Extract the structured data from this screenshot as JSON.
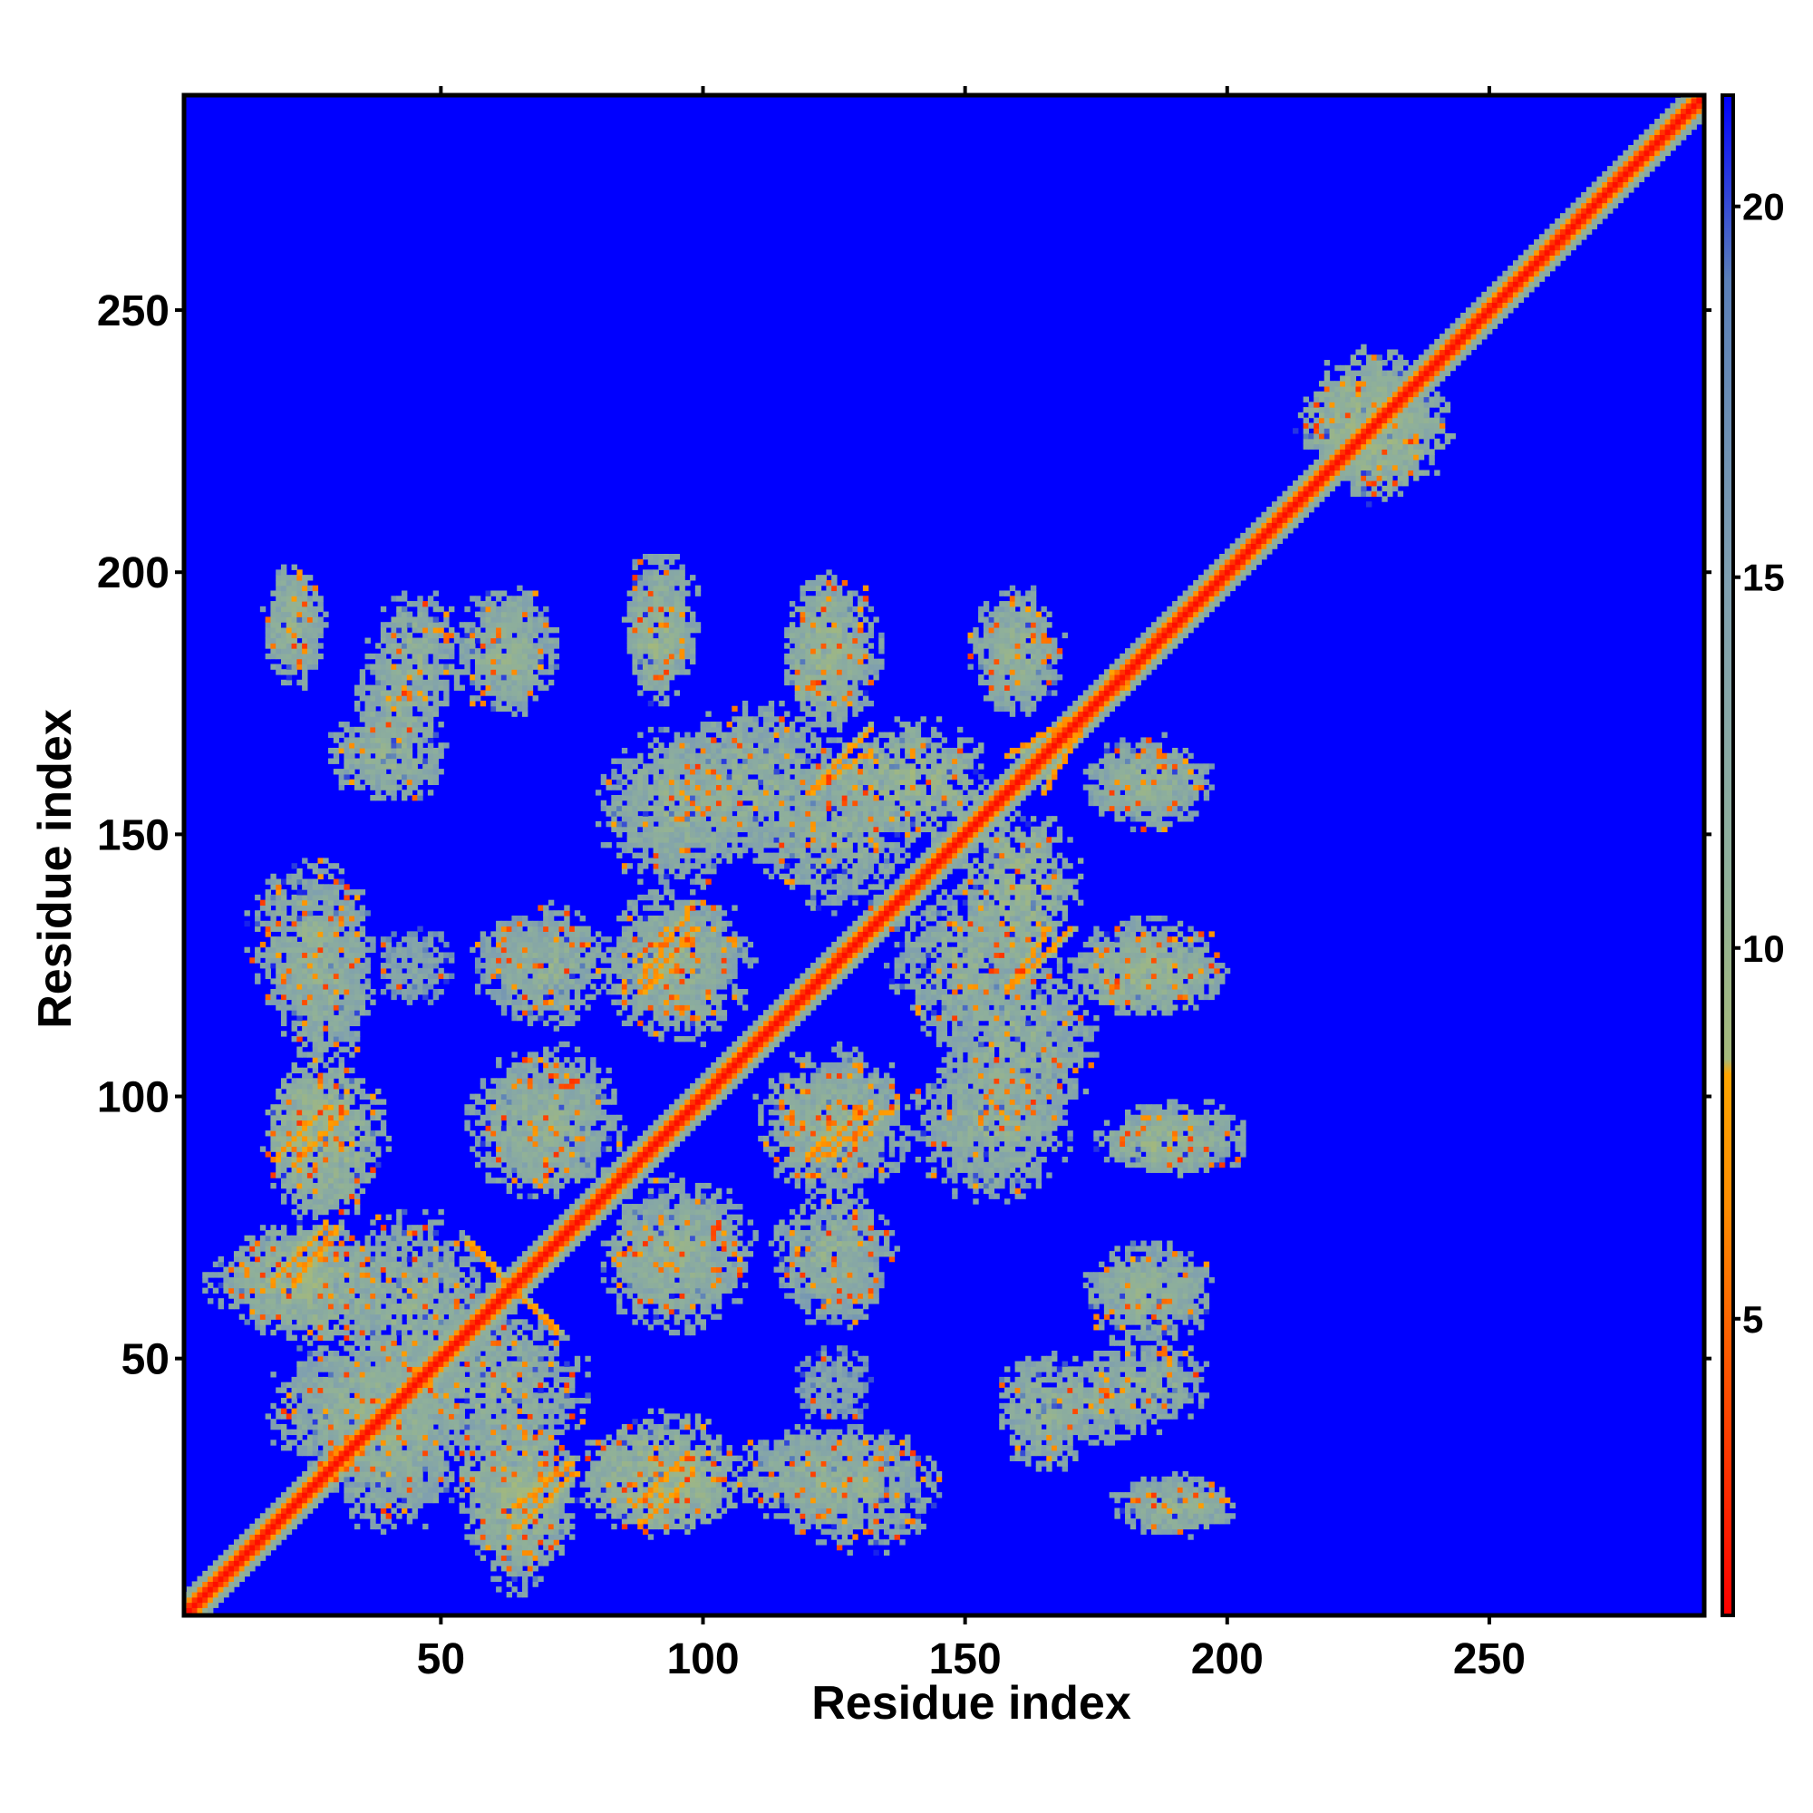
{
  "chart_data": {
    "type": "heatmap",
    "title": "",
    "xlabel": "Residue index",
    "ylabel": "Residue index",
    "x_range": [
      1,
      291
    ],
    "y_range": [
      1,
      291
    ],
    "x_ticks": [
      50,
      100,
      150,
      200,
      250
    ],
    "y_ticks": [
      50,
      100,
      150,
      200,
      250
    ],
    "grid": false,
    "legend": "colorbar-right",
    "colorbar": {
      "range": [
        1,
        21.5
      ],
      "ticks": [
        5,
        10,
        15,
        20
      ],
      "stops": [
        {
          "value": 1,
          "color": "#ff0000"
        },
        {
          "value": 4,
          "color": "#ff4d00"
        },
        {
          "value": 6.5,
          "color": "#ff8c00"
        },
        {
          "value": 8.3,
          "color": "#ffa500"
        },
        {
          "value": 8.5,
          "color": "#a5b97a"
        },
        {
          "value": 11,
          "color": "#8fb09a"
        },
        {
          "value": 15,
          "color": "#7f9fb0"
        },
        {
          "value": 19,
          "color": "#5a7fb8"
        },
        {
          "value": 21.5,
          "color": "#0000ff"
        }
      ]
    },
    "background_value": 21.5,
    "diagonal": [
      {
        "from": 1,
        "to": 291,
        "core_value": 1.5,
        "core_width": 1.2,
        "halo_value": 10,
        "halo_width": 4
      }
    ],
    "contact_regions": [
      {
        "x": 42,
        "y": 175,
        "rx": 6,
        "ry": 6,
        "value": 11
      },
      {
        "x": 22,
        "y": 190,
        "rx": 4,
        "ry": 7,
        "value": 11
      },
      {
        "x": 64,
        "y": 185,
        "rx": 5,
        "ry": 8,
        "value": 11
      },
      {
        "x": 91,
        "y": 188,
        "rx": 4,
        "ry": 8,
        "value": 10
      },
      {
        "x": 123,
        "y": 185,
        "rx": 5,
        "ry": 10,
        "value": 10
      },
      {
        "x": 160,
        "y": 185,
        "rx": 5,
        "ry": 8,
        "value": 11
      },
      {
        "x": 25,
        "y": 130,
        "rx": 8,
        "ry": 10,
        "value": 11
      },
      {
        "x": 28,
        "y": 92,
        "rx": 8,
        "ry": 10,
        "value": 10
      },
      {
        "x": 20,
        "y": 65,
        "rx": 10,
        "ry": 6,
        "value": 11
      },
      {
        "x": 45,
        "y": 60,
        "rx": 10,
        "ry": 12,
        "value": 11
      },
      {
        "x": 40,
        "y": 35,
        "rx": 10,
        "ry": 12,
        "value": 11
      },
      {
        "x": 65,
        "y": 25,
        "rx": 8,
        "ry": 10,
        "value": 10
      },
      {
        "x": 92,
        "y": 25,
        "rx": 10,
        "ry": 6,
        "value": 10
      },
      {
        "x": 120,
        "y": 28,
        "rx": 10,
        "ry": 6,
        "value": 11
      },
      {
        "x": 190,
        "y": 22,
        "rx": 8,
        "ry": 4,
        "value": 11
      },
      {
        "x": 165,
        "y": 40,
        "rx": 6,
        "ry": 8,
        "value": 11
      },
      {
        "x": 185,
        "y": 45,
        "rx": 8,
        "ry": 6,
        "value": 11
      },
      {
        "x": 185,
        "y": 62,
        "rx": 8,
        "ry": 7,
        "value": 11
      },
      {
        "x": 190,
        "y": 92,
        "rx": 10,
        "ry": 5,
        "value": 11
      },
      {
        "x": 185,
        "y": 125,
        "rx": 10,
        "ry": 6,
        "value": 11
      },
      {
        "x": 185,
        "y": 160,
        "rx": 8,
        "ry": 6,
        "value": 11
      },
      {
        "x": 160,
        "y": 110,
        "rx": 10,
        "ry": 12,
        "value": 11
      },
      {
        "x": 160,
        "y": 140,
        "rx": 8,
        "ry": 10,
        "value": 10
      },
      {
        "x": 125,
        "y": 150,
        "rx": 10,
        "ry": 10,
        "value": 11
      },
      {
        "x": 95,
        "y": 155,
        "rx": 10,
        "ry": 10,
        "value": 11
      },
      {
        "x": 95,
        "y": 125,
        "rx": 8,
        "ry": 8,
        "value": 11
      },
      {
        "x": 125,
        "y": 95,
        "rx": 10,
        "ry": 10,
        "value": 11
      },
      {
        "x": 95,
        "y": 70,
        "rx": 10,
        "ry": 10,
        "value": 11
      },
      {
        "x": 70,
        "y": 95,
        "rx": 8,
        "ry": 8,
        "value": 11
      },
      {
        "x": 125,
        "y": 70,
        "rx": 8,
        "ry": 8,
        "value": 11
      },
      {
        "x": 65,
        "y": 125,
        "rx": 6,
        "ry": 6,
        "value": 12
      },
      {
        "x": 45,
        "y": 125,
        "rx": 5,
        "ry": 5,
        "value": 13
      },
      {
        "x": 229,
        "y": 227,
        "rx": 9,
        "ry": 9,
        "value": 10
      }
    ],
    "strands": [
      {
        "x1": 18,
        "y1": 88,
        "x2": 28,
        "y2": 98,
        "value": 7
      },
      {
        "x1": 22,
        "y1": 65,
        "x2": 30,
        "y2": 75,
        "value": 7
      },
      {
        "x1": 55,
        "y1": 72,
        "x2": 72,
        "y2": 55,
        "value": 7
      },
      {
        "x1": 65,
        "y1": 18,
        "x2": 75,
        "y2": 28,
        "value": 7
      },
      {
        "x1": 87,
        "y1": 22,
        "x2": 97,
        "y2": 32,
        "value": 7
      },
      {
        "x1": 88,
        "y1": 120,
        "x2": 98,
        "y2": 132,
        "value": 7
      },
      {
        "x1": 120,
        "y1": 158,
        "x2": 132,
        "y2": 166,
        "value": 7
      },
      {
        "x1": 122,
        "y1": 88,
        "x2": 136,
        "y2": 98,
        "value": 7
      },
      {
        "x1": 160,
        "y1": 122,
        "x2": 170,
        "y2": 132,
        "value": 7
      },
      {
        "x1": 158,
        "y1": 165,
        "x2": 180,
        "y2": 178,
        "value": 7
      }
    ]
  }
}
